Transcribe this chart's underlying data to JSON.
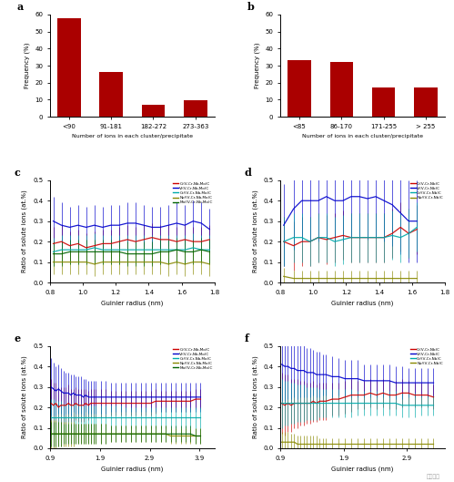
{
  "panel_a": {
    "label": "a",
    "categories": [
      "<90",
      "91-181",
      "182-272",
      "273-363"
    ],
    "values": [
      58,
      26,
      7,
      9.5
    ],
    "bar_color": "#AA0000",
    "ylabel": "Frequency (%)",
    "xlabel": "Number of ions in each cluster/precipitate",
    "ylim": [
      0,
      60
    ],
    "yticks": [
      0,
      10,
      20,
      30,
      40,
      50,
      60
    ]
  },
  "panel_b": {
    "label": "b",
    "categories": [
      "<85",
      "86-170",
      "171-255",
      "> 255"
    ],
    "values": [
      33,
      32,
      17,
      17
    ],
    "bar_color": "#AA0000",
    "ylabel": "Frequency (%)",
    "xlabel": "Number of ions in each cluster/precipitate",
    "ylim": [
      0,
      60
    ],
    "yticks": [
      0,
      10,
      20,
      30,
      40,
      50,
      60
    ]
  },
  "panel_c": {
    "label": "c",
    "xlabel": "Guinier radius (nm)",
    "ylabel": "Ratio of solute ions (at.%)",
    "xlim": [
      0.8,
      1.8
    ],
    "ylim": [
      0,
      0.5
    ],
    "yticks": [
      0,
      0.1,
      0.2,
      0.3,
      0.4,
      0.5
    ],
    "xticks": [
      0.8,
      1.0,
      1.2,
      1.4,
      1.6,
      1.8
    ],
    "legend_labels": [
      "C/(V,Cr,Nb,Mo)C",
      "V/(V,Cr,Nb,Mo)C",
      "Cr/(V,Cr,Nb,Mo)C",
      "Nb/(V,Cr,Nb,Mo)C",
      "Mo/(V,Cr,Nb,Mo)C"
    ],
    "legend_colors": [
      "#CC0000",
      "#0000CC",
      "#00AAAA",
      "#888800",
      "#006400"
    ],
    "x": [
      0.82,
      0.87,
      0.92,
      0.97,
      1.02,
      1.07,
      1.12,
      1.17,
      1.22,
      1.27,
      1.32,
      1.37,
      1.42,
      1.47,
      1.52,
      1.57,
      1.62,
      1.67,
      1.72,
      1.77
    ],
    "C_y": [
      0.19,
      0.2,
      0.18,
      0.19,
      0.17,
      0.18,
      0.19,
      0.19,
      0.2,
      0.21,
      0.2,
      0.21,
      0.22,
      0.21,
      0.21,
      0.2,
      0.21,
      0.2,
      0.2,
      0.21
    ],
    "V_y": [
      0.3,
      0.28,
      0.27,
      0.28,
      0.27,
      0.28,
      0.27,
      0.28,
      0.28,
      0.29,
      0.29,
      0.28,
      0.27,
      0.27,
      0.28,
      0.29,
      0.28,
      0.3,
      0.29,
      0.26
    ],
    "Cr_y": [
      0.15,
      0.16,
      0.16,
      0.16,
      0.16,
      0.17,
      0.16,
      0.16,
      0.16,
      0.16,
      0.16,
      0.16,
      0.16,
      0.16,
      0.16,
      0.16,
      0.16,
      0.17,
      0.16,
      0.16
    ],
    "Nb_y": [
      0.1,
      0.1,
      0.1,
      0.1,
      0.1,
      0.09,
      0.1,
      0.1,
      0.1,
      0.1,
      0.1,
      0.1,
      0.1,
      0.1,
      0.09,
      0.1,
      0.09,
      0.1,
      0.1,
      0.09
    ],
    "Mo_y": [
      0.14,
      0.14,
      0.15,
      0.15,
      0.15,
      0.15,
      0.15,
      0.15,
      0.15,
      0.14,
      0.14,
      0.14,
      0.14,
      0.15,
      0.15,
      0.16,
      0.15,
      0.15,
      0.16,
      0.15
    ],
    "C_err": [
      0.08,
      0.08,
      0.07,
      0.07,
      0.07,
      0.07,
      0.07,
      0.07,
      0.07,
      0.07,
      0.07,
      0.07,
      0.07,
      0.07,
      0.07,
      0.07,
      0.07,
      0.07,
      0.07,
      0.07
    ],
    "V_err": [
      0.12,
      0.11,
      0.1,
      0.1,
      0.1,
      0.1,
      0.1,
      0.1,
      0.1,
      0.1,
      0.1,
      0.1,
      0.1,
      0.1,
      0.1,
      0.1,
      0.1,
      0.1,
      0.1,
      0.1
    ],
    "Cr_err": [
      0.07,
      0.07,
      0.07,
      0.07,
      0.07,
      0.07,
      0.07,
      0.07,
      0.07,
      0.07,
      0.07,
      0.07,
      0.07,
      0.07,
      0.07,
      0.07,
      0.07,
      0.07,
      0.07,
      0.07
    ],
    "Nb_err": [
      0.06,
      0.06,
      0.06,
      0.06,
      0.06,
      0.06,
      0.06,
      0.06,
      0.06,
      0.06,
      0.06,
      0.06,
      0.06,
      0.06,
      0.06,
      0.06,
      0.06,
      0.06,
      0.06,
      0.06
    ],
    "Mo_err": [
      0.06,
      0.06,
      0.06,
      0.06,
      0.06,
      0.06,
      0.06,
      0.06,
      0.06,
      0.06,
      0.06,
      0.06,
      0.06,
      0.06,
      0.06,
      0.06,
      0.06,
      0.06,
      0.06,
      0.06
    ]
  },
  "panel_d": {
    "label": "d",
    "xlabel": "Guinier radius (nm)",
    "ylabel": "Ratio of solute ions (at.%)",
    "xlim": [
      0.8,
      1.8
    ],
    "ylim": [
      0,
      0.5
    ],
    "yticks": [
      0,
      0.1,
      0.2,
      0.3,
      0.4,
      0.5
    ],
    "xticks": [
      0.8,
      1.0,
      1.2,
      1.4,
      1.6,
      1.8
    ],
    "legend_labels": [
      "C/(V,Cr,Nb)C",
      "V/(V,Cr,Nb)C",
      "Cr/(V,Cr,Nb)C",
      "Nb/(V,Cr,Nb)C"
    ],
    "legend_colors": [
      "#CC0000",
      "#0000CC",
      "#00AAAA",
      "#888800"
    ],
    "x": [
      0.82,
      0.88,
      0.93,
      0.98,
      1.03,
      1.08,
      1.13,
      1.18,
      1.23,
      1.28,
      1.33,
      1.38,
      1.43,
      1.48,
      1.53,
      1.58,
      1.63
    ],
    "C_y": [
      0.2,
      0.18,
      0.2,
      0.2,
      0.22,
      0.21,
      0.22,
      0.23,
      0.22,
      0.22,
      0.22,
      0.22,
      0.22,
      0.24,
      0.27,
      0.24,
      0.26
    ],
    "V_y": [
      0.28,
      0.36,
      0.4,
      0.4,
      0.4,
      0.42,
      0.4,
      0.4,
      0.42,
      0.42,
      0.41,
      0.42,
      0.4,
      0.38,
      0.34,
      0.3,
      0.3
    ],
    "Cr_y": [
      0.2,
      0.22,
      0.22,
      0.2,
      0.22,
      0.22,
      0.2,
      0.21,
      0.22,
      0.22,
      0.22,
      0.22,
      0.22,
      0.23,
      0.22,
      0.24,
      0.27
    ],
    "Nb_y": [
      0.03,
      0.02,
      0.02,
      0.02,
      0.02,
      0.02,
      0.02,
      0.02,
      0.02,
      0.02,
      0.02,
      0.02,
      0.02,
      0.02,
      0.02,
      0.02,
      0.02
    ],
    "C_err": [
      0.12,
      0.12,
      0.12,
      0.12,
      0.12,
      0.12,
      0.12,
      0.12,
      0.12,
      0.12,
      0.12,
      0.12,
      0.12,
      0.12,
      0.12,
      0.12,
      0.12
    ],
    "V_err": [
      0.2,
      0.2,
      0.2,
      0.2,
      0.2,
      0.2,
      0.2,
      0.2,
      0.2,
      0.2,
      0.2,
      0.2,
      0.2,
      0.2,
      0.2,
      0.2,
      0.2
    ],
    "Cr_err": [
      0.12,
      0.12,
      0.12,
      0.12,
      0.12,
      0.12,
      0.12,
      0.12,
      0.12,
      0.12,
      0.12,
      0.12,
      0.12,
      0.12,
      0.12,
      0.12,
      0.12
    ],
    "Nb_err": [
      0.04,
      0.04,
      0.04,
      0.04,
      0.04,
      0.04,
      0.04,
      0.04,
      0.04,
      0.04,
      0.04,
      0.04,
      0.04,
      0.04,
      0.04,
      0.04,
      0.04
    ]
  },
  "panel_e": {
    "label": "e",
    "xlabel": "Guinier radius (nm)",
    "ylabel": "Ratio of solute ions (at.%)",
    "xlim": [
      0.9,
      4.2
    ],
    "ylim": [
      0,
      0.5
    ],
    "yticks": [
      0,
      0.1,
      0.2,
      0.3,
      0.4,
      0.5
    ],
    "xticks": [
      0.9,
      1.9,
      2.9,
      3.9
    ],
    "legend_labels": [
      "C/(V,Cr,Nb,Mo)C",
      "V/(V,Cr,Nb,Mo)C",
      "Cr/(V,Cr,Nb,Mo)C",
      "Nb/(V,Cr,Nb,Mo)C",
      "Mo/(V,Cr,Nb,Mo)C"
    ],
    "legend_colors": [
      "#CC0000",
      "#0000CC",
      "#00AAAA",
      "#888800",
      "#006400"
    ],
    "x": [
      0.92,
      0.97,
      1.02,
      1.07,
      1.12,
      1.17,
      1.22,
      1.27,
      1.32,
      1.37,
      1.42,
      1.47,
      1.52,
      1.57,
      1.62,
      1.67,
      1.72,
      1.77,
      1.82,
      1.92,
      2.02,
      2.12,
      2.22,
      2.32,
      2.42,
      2.52,
      2.62,
      2.72,
      2.82,
      2.92,
      3.02,
      3.12,
      3.22,
      3.32,
      3.42,
      3.52,
      3.62,
      3.72,
      3.82,
      3.92
    ],
    "C_y": [
      0.22,
      0.21,
      0.22,
      0.2,
      0.21,
      0.21,
      0.21,
      0.22,
      0.21,
      0.21,
      0.22,
      0.21,
      0.21,
      0.21,
      0.22,
      0.21,
      0.22,
      0.22,
      0.22,
      0.22,
      0.22,
      0.22,
      0.22,
      0.22,
      0.22,
      0.22,
      0.22,
      0.22,
      0.22,
      0.22,
      0.23,
      0.23,
      0.23,
      0.23,
      0.23,
      0.23,
      0.23,
      0.23,
      0.24,
      0.24
    ],
    "V_y": [
      0.3,
      0.29,
      0.28,
      0.29,
      0.28,
      0.27,
      0.27,
      0.27,
      0.26,
      0.27,
      0.26,
      0.26,
      0.26,
      0.25,
      0.26,
      0.25,
      0.25,
      0.25,
      0.25,
      0.25,
      0.25,
      0.25,
      0.25,
      0.25,
      0.25,
      0.25,
      0.25,
      0.25,
      0.25,
      0.25,
      0.25,
      0.25,
      0.25,
      0.25,
      0.25,
      0.25,
      0.25,
      0.25,
      0.25,
      0.25
    ],
    "Cr_y": [
      0.15,
      0.15,
      0.15,
      0.15,
      0.15,
      0.15,
      0.15,
      0.15,
      0.15,
      0.15,
      0.15,
      0.15,
      0.15,
      0.15,
      0.15,
      0.15,
      0.15,
      0.15,
      0.15,
      0.15,
      0.15,
      0.15,
      0.15,
      0.15,
      0.15,
      0.15,
      0.15,
      0.15,
      0.15,
      0.15,
      0.15,
      0.15,
      0.15,
      0.15,
      0.15,
      0.15,
      0.15,
      0.15,
      0.15,
      0.15
    ],
    "Nb_y": [
      0.07,
      0.07,
      0.07,
      0.07,
      0.07,
      0.07,
      0.07,
      0.07,
      0.07,
      0.07,
      0.07,
      0.07,
      0.07,
      0.07,
      0.07,
      0.07,
      0.07,
      0.07,
      0.07,
      0.07,
      0.07,
      0.07,
      0.07,
      0.07,
      0.07,
      0.07,
      0.07,
      0.07,
      0.07,
      0.07,
      0.07,
      0.07,
      0.07,
      0.06,
      0.06,
      0.06,
      0.06,
      0.06,
      0.06,
      0.06
    ],
    "Mo_y": [
      0.07,
      0.07,
      0.07,
      0.07,
      0.07,
      0.07,
      0.07,
      0.07,
      0.07,
      0.07,
      0.07,
      0.07,
      0.07,
      0.07,
      0.07,
      0.07,
      0.07,
      0.07,
      0.07,
      0.07,
      0.07,
      0.07,
      0.07,
      0.07,
      0.07,
      0.07,
      0.07,
      0.07,
      0.07,
      0.07,
      0.07,
      0.07,
      0.07,
      0.07,
      0.07,
      0.07,
      0.07,
      0.07,
      0.06,
      0.06
    ],
    "C_err": [
      0.12,
      0.11,
      0.1,
      0.1,
      0.09,
      0.09,
      0.09,
      0.09,
      0.08,
      0.08,
      0.08,
      0.08,
      0.08,
      0.08,
      0.07,
      0.07,
      0.07,
      0.07,
      0.07,
      0.07,
      0.07,
      0.06,
      0.06,
      0.06,
      0.06,
      0.06,
      0.06,
      0.06,
      0.06,
      0.06,
      0.06,
      0.05,
      0.05,
      0.05,
      0.05,
      0.05,
      0.05,
      0.05,
      0.05,
      0.05
    ],
    "V_err": [
      0.14,
      0.13,
      0.12,
      0.12,
      0.11,
      0.11,
      0.1,
      0.1,
      0.1,
      0.09,
      0.09,
      0.09,
      0.09,
      0.09,
      0.08,
      0.08,
      0.08,
      0.08,
      0.08,
      0.08,
      0.08,
      0.07,
      0.07,
      0.07,
      0.07,
      0.07,
      0.07,
      0.07,
      0.07,
      0.07,
      0.07,
      0.07,
      0.07,
      0.07,
      0.07,
      0.07,
      0.07,
      0.07,
      0.07,
      0.07
    ],
    "Cr_err": [
      0.09,
      0.09,
      0.08,
      0.08,
      0.08,
      0.07,
      0.07,
      0.07,
      0.07,
      0.07,
      0.07,
      0.07,
      0.07,
      0.06,
      0.06,
      0.06,
      0.06,
      0.06,
      0.06,
      0.06,
      0.06,
      0.06,
      0.06,
      0.06,
      0.05,
      0.05,
      0.05,
      0.05,
      0.05,
      0.05,
      0.05,
      0.05,
      0.05,
      0.05,
      0.05,
      0.05,
      0.05,
      0.05,
      0.05,
      0.05
    ],
    "Nb_err": [
      0.07,
      0.07,
      0.07,
      0.06,
      0.06,
      0.06,
      0.06,
      0.06,
      0.06,
      0.06,
      0.05,
      0.05,
      0.05,
      0.05,
      0.05,
      0.05,
      0.05,
      0.05,
      0.05,
      0.05,
      0.05,
      0.04,
      0.04,
      0.04,
      0.04,
      0.04,
      0.04,
      0.04,
      0.04,
      0.04,
      0.04,
      0.04,
      0.04,
      0.04,
      0.04,
      0.04,
      0.04,
      0.04,
      0.04,
      0.04
    ],
    "Mo_err": [
      0.06,
      0.06,
      0.06,
      0.06,
      0.06,
      0.05,
      0.05,
      0.05,
      0.05,
      0.05,
      0.05,
      0.05,
      0.05,
      0.05,
      0.05,
      0.05,
      0.05,
      0.05,
      0.05,
      0.05,
      0.05,
      0.04,
      0.04,
      0.04,
      0.04,
      0.04,
      0.04,
      0.04,
      0.04,
      0.04,
      0.04,
      0.04,
      0.04,
      0.04,
      0.04,
      0.04,
      0.04,
      0.04,
      0.04,
      0.04
    ]
  },
  "panel_f": {
    "label": "f",
    "xlabel": "Guinier radius (nm)",
    "ylabel": "Ratio of solute ions (at.%)",
    "xlim": [
      0.9,
      3.5
    ],
    "ylim": [
      0,
      0.5
    ],
    "yticks": [
      0,
      0.1,
      0.2,
      0.3,
      0.4,
      0.5
    ],
    "xticks": [
      0.9,
      1.9,
      2.9
    ],
    "legend_labels": [
      "C/(V,Cr,Nb)C",
      "V/(V,Cr,Nb)C",
      "Cr/(V,Cr,Nb)C",
      "Nb/(V,Cr,Nb)C"
    ],
    "legend_colors": [
      "#CC0000",
      "#0000CC",
      "#00AAAA",
      "#888800"
    ],
    "x": [
      0.92,
      0.97,
      1.02,
      1.07,
      1.12,
      1.17,
      1.22,
      1.27,
      1.32,
      1.37,
      1.42,
      1.47,
      1.52,
      1.57,
      1.62,
      1.72,
      1.82,
      1.92,
      2.02,
      2.12,
      2.22,
      2.32,
      2.42,
      2.52,
      2.62,
      2.72,
      2.82,
      2.92,
      3.02,
      3.12,
      3.22,
      3.32
    ],
    "C_y": [
      0.22,
      0.21,
      0.22,
      0.21,
      0.22,
      0.22,
      0.22,
      0.22,
      0.22,
      0.22,
      0.23,
      0.22,
      0.23,
      0.23,
      0.23,
      0.24,
      0.24,
      0.25,
      0.26,
      0.26,
      0.26,
      0.27,
      0.26,
      0.27,
      0.26,
      0.26,
      0.27,
      0.27,
      0.26,
      0.26,
      0.26,
      0.25
    ],
    "V_y": [
      0.41,
      0.4,
      0.4,
      0.39,
      0.39,
      0.38,
      0.38,
      0.38,
      0.37,
      0.37,
      0.37,
      0.36,
      0.36,
      0.36,
      0.36,
      0.35,
      0.35,
      0.34,
      0.34,
      0.34,
      0.33,
      0.33,
      0.33,
      0.33,
      0.33,
      0.32,
      0.32,
      0.32,
      0.32,
      0.32,
      0.32,
      0.32
    ],
    "Cr_y": [
      0.22,
      0.22,
      0.22,
      0.22,
      0.22,
      0.22,
      0.22,
      0.22,
      0.22,
      0.22,
      0.22,
      0.22,
      0.22,
      0.22,
      0.22,
      0.22,
      0.22,
      0.22,
      0.22,
      0.22,
      0.22,
      0.22,
      0.22,
      0.22,
      0.22,
      0.22,
      0.21,
      0.21,
      0.21,
      0.21,
      0.21,
      0.21
    ],
    "Nb_y": [
      0.03,
      0.03,
      0.03,
      0.03,
      0.03,
      0.02,
      0.02,
      0.02,
      0.02,
      0.02,
      0.02,
      0.02,
      0.02,
      0.02,
      0.02,
      0.02,
      0.02,
      0.02,
      0.02,
      0.02,
      0.02,
      0.02,
      0.02,
      0.02,
      0.02,
      0.02,
      0.02,
      0.02,
      0.02,
      0.02,
      0.02,
      0.02
    ],
    "C_err": [
      0.15,
      0.15,
      0.14,
      0.13,
      0.12,
      0.12,
      0.11,
      0.11,
      0.1,
      0.1,
      0.1,
      0.09,
      0.09,
      0.09,
      0.09,
      0.08,
      0.08,
      0.08,
      0.08,
      0.07,
      0.07,
      0.07,
      0.07,
      0.07,
      0.07,
      0.07,
      0.07,
      0.06,
      0.06,
      0.06,
      0.06,
      0.06
    ],
    "V_err": [
      0.18,
      0.17,
      0.16,
      0.15,
      0.14,
      0.14,
      0.13,
      0.13,
      0.12,
      0.12,
      0.11,
      0.11,
      0.11,
      0.1,
      0.1,
      0.1,
      0.09,
      0.09,
      0.09,
      0.09,
      0.08,
      0.08,
      0.08,
      0.08,
      0.08,
      0.08,
      0.08,
      0.07,
      0.07,
      0.07,
      0.07,
      0.07
    ],
    "Cr_err": [
      0.12,
      0.11,
      0.11,
      0.1,
      0.1,
      0.09,
      0.09,
      0.09,
      0.08,
      0.08,
      0.08,
      0.08,
      0.07,
      0.07,
      0.07,
      0.07,
      0.07,
      0.07,
      0.07,
      0.06,
      0.06,
      0.06,
      0.06,
      0.06,
      0.06,
      0.06,
      0.06,
      0.06,
      0.06,
      0.05,
      0.05,
      0.05
    ],
    "Nb_err": [
      0.05,
      0.05,
      0.05,
      0.04,
      0.04,
      0.04,
      0.04,
      0.04,
      0.04,
      0.04,
      0.04,
      0.04,
      0.03,
      0.03,
      0.03,
      0.03,
      0.03,
      0.03,
      0.03,
      0.03,
      0.03,
      0.03,
      0.03,
      0.03,
      0.03,
      0.03,
      0.03,
      0.03,
      0.03,
      0.03,
      0.03,
      0.03
    ]
  },
  "bg_color": "#ffffff",
  "bar_color_dark": "#AA0000"
}
